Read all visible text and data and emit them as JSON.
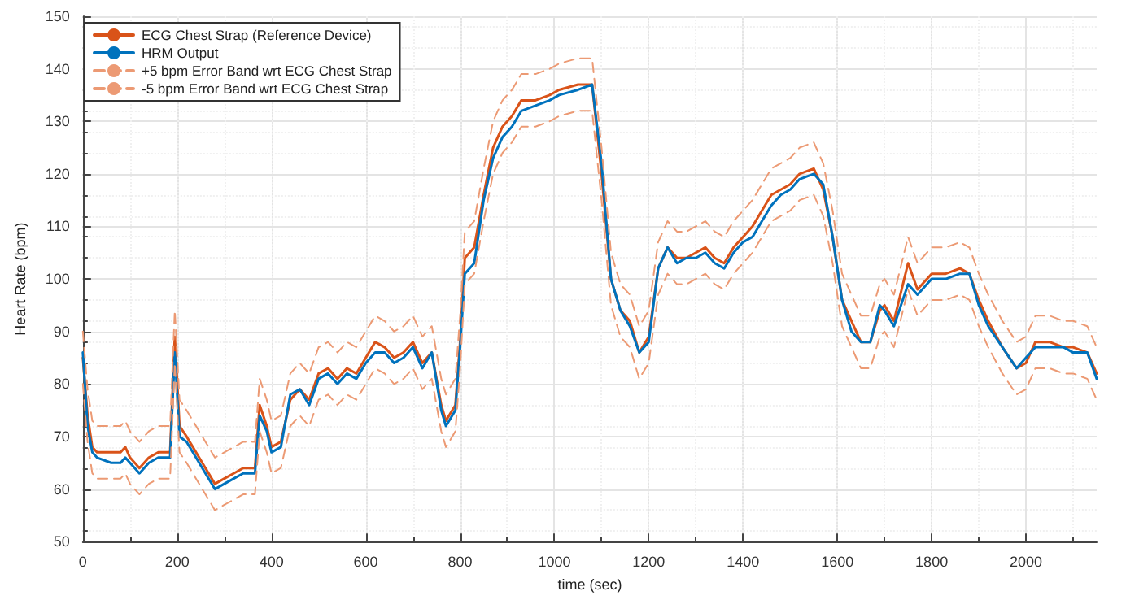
{
  "chart_data": {
    "type": "line",
    "xlabel": "time (sec)",
    "ylabel": "Heart Rate (bpm)",
    "x": [
      0,
      10,
      20,
      30,
      60,
      80,
      90,
      100,
      120,
      140,
      160,
      185,
      195,
      205,
      220,
      240,
      260,
      280,
      300,
      320,
      340,
      365,
      375,
      390,
      400,
      420,
      440,
      460,
      480,
      500,
      520,
      540,
      560,
      580,
      600,
      620,
      640,
      660,
      680,
      700,
      720,
      740,
      760,
      770,
      790,
      800,
      810,
      830,
      850,
      870,
      890,
      910,
      930,
      960,
      990,
      1010,
      1050,
      1080,
      1100,
      1120,
      1140,
      1160,
      1180,
      1200,
      1220,
      1240,
      1260,
      1280,
      1300,
      1320,
      1340,
      1360,
      1380,
      1400,
      1420,
      1440,
      1460,
      1480,
      1500,
      1520,
      1550,
      1570,
      1590,
      1610,
      1630,
      1650,
      1670,
      1690,
      1700,
      1720,
      1750,
      1770,
      1800,
      1830,
      1860,
      1880,
      1900,
      1920,
      1950,
      1980,
      2000,
      2020,
      2050,
      2080,
      2100,
      2130,
      2150
    ],
    "series": [
      {
        "name": "ECG Chest Strap (Reference Device)",
        "color": "#d95319",
        "line_style": "solid",
        "values": [
          85,
          74,
          68,
          67,
          67,
          67,
          68,
          66,
          64,
          66,
          67,
          67,
          89,
          72,
          70,
          67,
          64,
          61,
          62,
          63,
          64,
          64,
          76,
          72,
          68,
          69,
          77,
          79,
          77,
          82,
          83,
          81,
          83,
          82,
          85,
          88,
          87,
          85,
          86,
          88,
          84,
          86,
          76,
          73,
          76,
          88,
          104,
          106,
          116,
          125,
          129,
          131,
          134,
          134,
          135,
          136,
          137,
          137,
          120,
          100,
          94,
          92,
          86,
          89,
          102,
          106,
          104,
          104,
          105,
          106,
          104,
          103,
          106,
          108,
          110,
          113,
          116,
          117,
          118,
          120,
          121,
          117,
          108,
          96,
          92,
          88,
          88,
          94,
          95,
          92,
          103,
          98,
          101,
          101,
          102,
          101,
          96,
          92,
          87,
          83,
          84,
          88,
          88,
          87,
          87,
          86,
          82
        ]
      },
      {
        "name": "HRM Output",
        "color": "#0072bd",
        "line_style": "solid",
        "values": [
          86,
          72,
          67,
          66,
          65,
          65,
          66,
          65,
          63,
          65,
          66,
          66,
          86,
          70,
          69,
          66,
          63,
          60,
          61,
          62,
          63,
          63,
          74,
          71,
          67,
          68,
          78,
          79,
          76,
          81,
          82,
          80,
          82,
          81,
          84,
          86,
          86,
          84,
          85,
          87,
          83,
          86,
          75,
          72,
          75,
          87,
          101,
          103,
          115,
          123,
          127,
          129,
          132,
          133,
          134,
          135,
          136,
          137,
          122,
          100,
          94,
          91,
          86,
          88,
          102,
          106,
          103,
          104,
          104,
          105,
          103,
          102,
          105,
          107,
          108,
          111,
          114,
          116,
          117,
          119,
          120,
          118,
          108,
          96,
          90,
          88,
          88,
          95,
          94,
          91,
          99,
          97,
          100,
          100,
          101,
          101,
          95,
          91,
          87,
          83,
          85,
          87,
          87,
          87,
          86,
          86,
          81
        ]
      },
      {
        "name": "+5 bpm Error Band wrt ECG Chest Strap",
        "color": "#ec9a74",
        "line_style": "dashed",
        "values": [
          90,
          79,
          73,
          72,
          72,
          72,
          73,
          71,
          69,
          71,
          72,
          72,
          94,
          77,
          75,
          72,
          69,
          66,
          67,
          68,
          69,
          69,
          81,
          77,
          73,
          74,
          82,
          84,
          82,
          87,
          88,
          86,
          88,
          87,
          90,
          93,
          92,
          90,
          91,
          93,
          89,
          91,
          81,
          78,
          81,
          93,
          109,
          111,
          121,
          130,
          134,
          136,
          139,
          139,
          140,
          141,
          142,
          142,
          125,
          105,
          99,
          97,
          91,
          94,
          107,
          111,
          109,
          109,
          110,
          111,
          109,
          108,
          111,
          113,
          115,
          118,
          121,
          122,
          123,
          125,
          126,
          122,
          113,
          101,
          97,
          93,
          93,
          99,
          100,
          97,
          108,
          103,
          106,
          106,
          107,
          106,
          101,
          97,
          92,
          88,
          89,
          93,
          93,
          92,
          92,
          91,
          87
        ]
      },
      {
        "name": "-5 bpm Error Band wrt ECG Chest Strap",
        "color": "#ec9a74",
        "line_style": "dashed",
        "values": [
          80,
          69,
          63,
          62,
          62,
          62,
          63,
          61,
          59,
          61,
          62,
          62,
          84,
          67,
          65,
          62,
          59,
          56,
          57,
          58,
          59,
          59,
          71,
          67,
          63,
          64,
          72,
          74,
          72,
          77,
          78,
          76,
          78,
          77,
          80,
          83,
          82,
          80,
          81,
          83,
          79,
          81,
          71,
          68,
          71,
          83,
          99,
          101,
          111,
          120,
          124,
          126,
          129,
          129,
          130,
          131,
          132,
          132,
          115,
          95,
          89,
          87,
          81,
          84,
          97,
          101,
          99,
          99,
          100,
          101,
          99,
          98,
          101,
          103,
          105,
          108,
          111,
          112,
          113,
          115,
          116,
          112,
          103,
          91,
          87,
          83,
          83,
          89,
          90,
          87,
          98,
          93,
          96,
          96,
          97,
          96,
          91,
          87,
          82,
          78,
          79,
          83,
          83,
          82,
          82,
          81,
          77
        ]
      }
    ],
    "xlim": [
      0,
      2150
    ],
    "xticks": [
      0,
      200,
      400,
      600,
      800,
      1000,
      1200,
      1400,
      1600,
      1800,
      2000
    ],
    "ylim": [
      50,
      150
    ],
    "yticks": [
      50,
      60,
      70,
      80,
      90,
      100,
      110,
      120,
      130,
      140,
      150
    ],
    "grid": true,
    "legend": "top left",
    "marker": "none"
  }
}
